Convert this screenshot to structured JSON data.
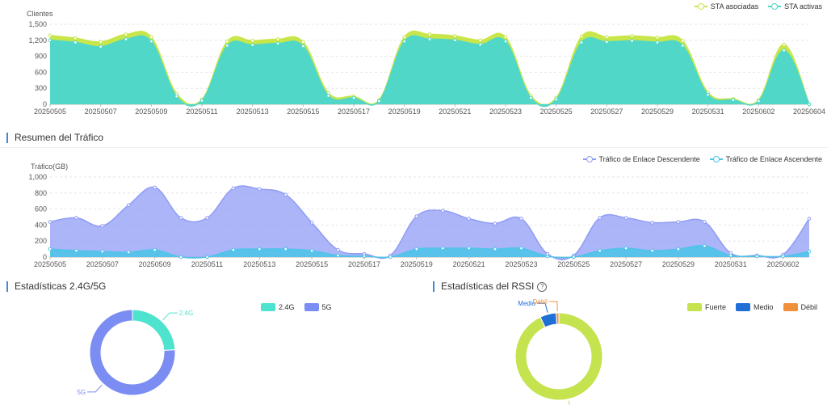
{
  "section_traffic": {
    "title": "Resumen del Tráfico"
  },
  "section_band": {
    "title": "Estadísticas 2.4G/5G"
  },
  "section_rssi": {
    "title": "Estadísticas del RSSI",
    "help_icon": "question-circle-icon"
  },
  "colors": {
    "sta_asociadas": "#c8e64a",
    "sta_activas": "#50d7c8",
    "descendente": "#8f9cf5",
    "ascendente": "#4fc3e8",
    "g24": "#4de3cf",
    "g5": "#7b8cf2",
    "fuerte": "#c4e34f",
    "medio": "#1f6fd6",
    "debil": "#f0903a",
    "accent": "#3b8bd6"
  },
  "chart_data": [
    {
      "type": "area",
      "ylabel": "Clientes",
      "ylim": [
        0,
        1500
      ],
      "yticks": [
        "0",
        "300",
        "600",
        "900",
        "1,200",
        "1,500"
      ],
      "x": [
        "20250505",
        "20250506",
        "20250507",
        "20250508",
        "20250509",
        "20250510",
        "20250511",
        "20250512",
        "20250513",
        "20250514",
        "20250515",
        "20250516",
        "20250517",
        "20250518",
        "20250519",
        "20250520",
        "20250521",
        "20250522",
        "20250523",
        "20250524",
        "20250525",
        "20250526",
        "20250527",
        "20250528",
        "20250529",
        "20250530",
        "20250531",
        "20250601",
        "20250602",
        "20250603",
        "20250604"
      ],
      "xticks": [
        "20250505",
        "20250507",
        "20250509",
        "20250511",
        "20250513",
        "20250515",
        "20250517",
        "20250519",
        "20250521",
        "20250523",
        "20250525",
        "20250527",
        "20250529",
        "20250531",
        "20250602",
        "20250604"
      ],
      "grid": true,
      "legend": "top-right",
      "series": [
        {
          "name": "STA asociadas",
          "values": [
            1290,
            1240,
            1170,
            1310,
            1260,
            200,
            90,
            1180,
            1190,
            1220,
            1170,
            210,
            150,
            80,
            1260,
            1310,
            1280,
            1200,
            1260,
            160,
            120,
            1270,
            1260,
            1280,
            1250,
            1190,
            220,
            100,
            80,
            1120,
            0
          ]
        },
        {
          "name": "STA activas",
          "values": [
            1200,
            1160,
            1080,
            1220,
            1180,
            150,
            70,
            1100,
            1110,
            1140,
            1090,
            160,
            120,
            60,
            1180,
            1220,
            1200,
            1120,
            1180,
            120,
            90,
            1160,
            1170,
            1190,
            1160,
            1100,
            180,
            80,
            60,
            1010,
            0
          ]
        }
      ]
    },
    {
      "type": "area",
      "ylabel": "Tráfico(GB)",
      "ylim": [
        0,
        1000
      ],
      "yticks": [
        "0",
        "200",
        "400",
        "600",
        "800",
        "1,000"
      ],
      "x": [
        "20250505",
        "20250506",
        "20250507",
        "20250508",
        "20250509",
        "20250510",
        "20250511",
        "20250512",
        "20250513",
        "20250514",
        "20250515",
        "20250516",
        "20250517",
        "20250518",
        "20250519",
        "20250520",
        "20250521",
        "20250522",
        "20250523",
        "20250524",
        "20250525",
        "20250526",
        "20250527",
        "20250528",
        "20250529",
        "20250530",
        "20250531",
        "20250601",
        "20250602",
        "20250603"
      ],
      "xticks": [
        "20250505",
        "20250507",
        "20250509",
        "20250511",
        "20250513",
        "20250515",
        "20250517",
        "20250519",
        "20250521",
        "20250523",
        "20250525",
        "20250527",
        "20250529",
        "20250531",
        "20250602"
      ],
      "grid": true,
      "legend": "top-right",
      "series": [
        {
          "name": "Tráfico de Enlace Descendente",
          "values": [
            440,
            490,
            390,
            650,
            870,
            490,
            490,
            860,
            850,
            780,
            430,
            90,
            40,
            20,
            510,
            580,
            480,
            420,
            480,
            40,
            20,
            490,
            490,
            430,
            440,
            440,
            50,
            20,
            30,
            480
          ]
        },
        {
          "name": "Tráfico de Enlace Ascendente",
          "values": [
            100,
            80,
            70,
            60,
            90,
            0,
            0,
            90,
            100,
            100,
            80,
            20,
            10,
            0,
            100,
            110,
            110,
            100,
            110,
            10,
            0,
            80,
            110,
            80,
            100,
            140,
            20,
            10,
            10,
            70
          ]
        }
      ]
    },
    {
      "type": "pie",
      "donut": true,
      "legend": "top-right",
      "categories": [
        "2.4G",
        "5G"
      ],
      "values": [
        24,
        76
      ]
    },
    {
      "type": "pie",
      "donut": true,
      "legend": "top-right",
      "categories": [
        "Fuerte",
        "Medio",
        "Débil"
      ],
      "values": [
        93,
        6,
        1
      ]
    }
  ]
}
